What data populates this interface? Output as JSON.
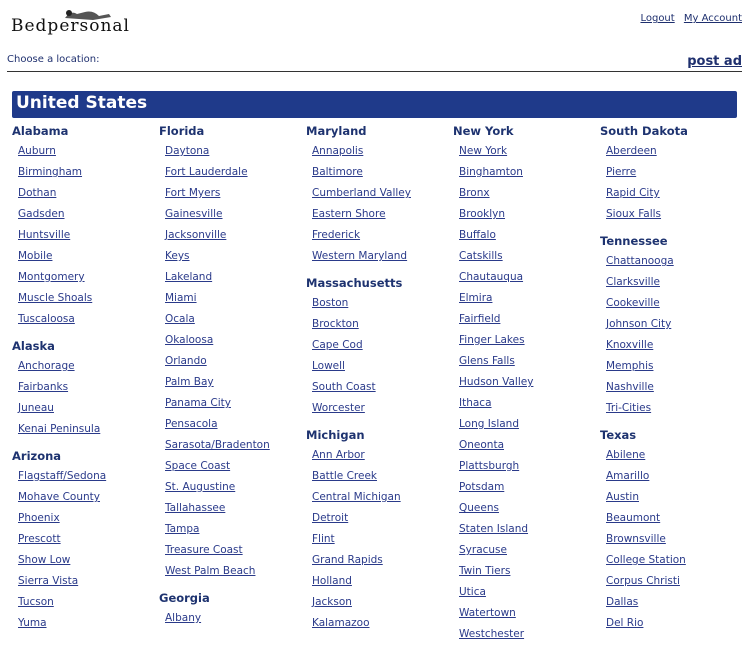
{
  "logo": {
    "text": "Bedpersonal"
  },
  "header": {
    "logout": "Logout",
    "my_account": "My Account"
  },
  "choose_label": "Choose a location:",
  "post_ad": "post ad",
  "country": "United States",
  "colors": {
    "banner": "#1f3a8a",
    "link": "#2a3a8a"
  },
  "columns": [
    [
      {
        "state": "Alabama",
        "cities": [
          "Auburn",
          "Birmingham",
          "Dothan",
          "Gadsden",
          "Huntsville",
          "Mobile",
          "Montgomery",
          "Muscle Shoals",
          "Tuscaloosa"
        ]
      },
      {
        "state": "Alaska",
        "cities": [
          "Anchorage",
          "Fairbanks",
          "Juneau",
          "Kenai Peninsula"
        ]
      },
      {
        "state": "Arizona",
        "cities": [
          "Flagstaff/Sedona",
          "Mohave County",
          "Phoenix",
          "Prescott",
          "Show Low",
          "Sierra Vista",
          "Tucson",
          "Yuma"
        ]
      }
    ],
    [
      {
        "state": "Florida",
        "cities": [
          "Daytona",
          "Fort Lauderdale",
          "Fort Myers",
          "Gainesville",
          "Jacksonville",
          "Keys",
          "Lakeland",
          "Miami",
          "Ocala",
          "Okaloosa",
          "Orlando",
          "Palm Bay",
          "Panama City",
          "Pensacola",
          "Sarasota/Bradenton",
          "Space Coast",
          "St. Augustine",
          "Tallahassee",
          "Tampa",
          "Treasure Coast",
          "West Palm Beach"
        ]
      },
      {
        "state": "Georgia",
        "cities": [
          "Albany"
        ]
      }
    ],
    [
      {
        "state": "Maryland",
        "cities": [
          "Annapolis",
          "Baltimore",
          "Cumberland Valley",
          "Eastern Shore",
          "Frederick",
          "Western Maryland"
        ]
      },
      {
        "state": "Massachusetts",
        "cities": [
          "Boston",
          "Brockton",
          "Cape Cod",
          "Lowell",
          "South Coast",
          "Worcester"
        ]
      },
      {
        "state": "Michigan",
        "cities": [
          "Ann Arbor",
          "Battle Creek",
          "Central Michigan",
          "Detroit",
          "Flint",
          "Grand Rapids",
          "Holland",
          "Jackson",
          "Kalamazoo"
        ]
      }
    ],
    [
      {
        "state": "New York",
        "cities": [
          "New York",
          "Binghamton",
          "Bronx",
          "Brooklyn",
          "Buffalo",
          "Catskills",
          "Chautauqua",
          "Elmira",
          "Fairfield",
          "Finger Lakes",
          "Glens Falls",
          "Hudson Valley",
          "Ithaca",
          "Long Island",
          "Oneonta",
          "Plattsburgh",
          "Potsdam",
          "Queens",
          "Staten Island",
          "Syracuse",
          "Twin Tiers",
          "Utica",
          "Watertown",
          "Westchester"
        ]
      }
    ],
    [
      {
        "state": "South Dakota",
        "cities": [
          "Aberdeen",
          "Pierre",
          "Rapid City",
          "Sioux Falls"
        ]
      },
      {
        "state": "Tennessee",
        "cities": [
          "Chattanooga",
          "Clarksville",
          "Cookeville",
          "Johnson City",
          "Knoxville",
          "Memphis",
          "Nashville",
          "Tri-Cities"
        ]
      },
      {
        "state": "Texas",
        "cities": [
          "Abilene",
          "Amarillo",
          "Austin",
          "Beaumont",
          "Brownsville",
          "College Station",
          "Corpus Christi",
          "Dallas",
          "Del Rio"
        ]
      }
    ]
  ]
}
